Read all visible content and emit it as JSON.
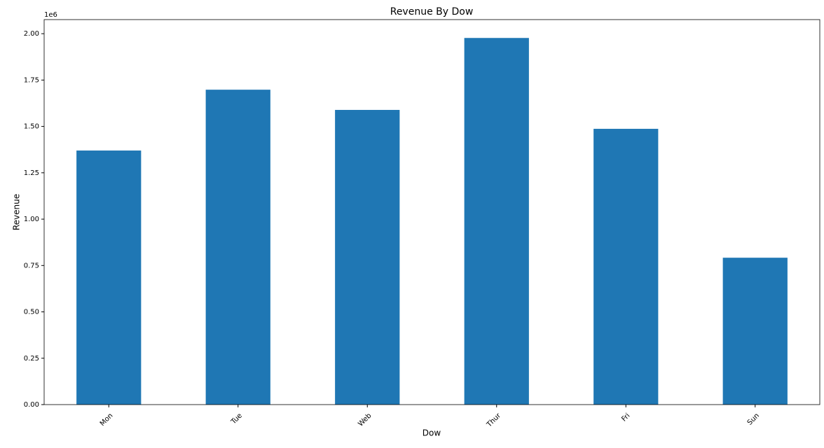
{
  "chart_data": {
    "type": "bar",
    "title": "Revenue By Dow",
    "x_label": "Dow",
    "y_label": "Revenue",
    "y_offset_text": "1e6",
    "categories": [
      "Mon",
      "Tue",
      "Web",
      "Thur",
      "Fri",
      "Sun"
    ],
    "values": [
      1.37,
      1.698,
      1.589,
      1.977,
      1.487,
      0.792
    ],
    "color": "#1f77b4",
    "ylim": [
      0,
      2.076
    ],
    "yticks": [
      {
        "value": 0,
        "label": "0.00"
      },
      {
        "value": 0.25,
        "label": "0.25"
      },
      {
        "value": 0.5,
        "label": "0.50"
      },
      {
        "value": 0.75,
        "label": "0.75"
      },
      {
        "value": 1,
        "label": "1.00"
      },
      {
        "value": 1.25,
        "label": "1.25"
      },
      {
        "value": 1.5,
        "label": "1.50"
      },
      {
        "value": 1.75,
        "label": "1.75"
      },
      {
        "value": 2,
        "label": "2.00"
      }
    ],
    "grid": false
  }
}
